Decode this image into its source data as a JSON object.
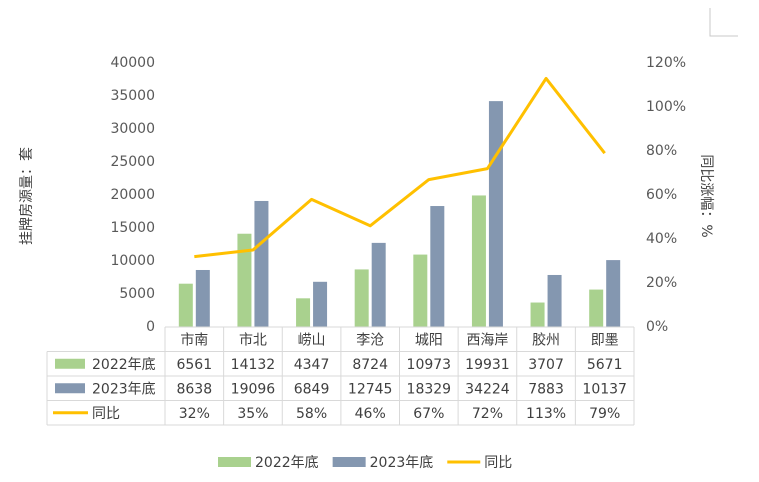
{
  "chart_data": {
    "type": "bar",
    "categories": [
      "市南",
      "市北",
      "崂山",
      "李沧",
      "城阳",
      "西海岸",
      "胶州",
      "即墨"
    ],
    "series": [
      {
        "name": "2022年底",
        "type": "bar",
        "axis": "left",
        "color": "#A9D18E",
        "values": [
          6561,
          14132,
          4347,
          8724,
          10973,
          19931,
          3707,
          5671
        ],
        "labels": [
          "6561",
          "14132",
          "4347",
          "8724",
          "10973",
          "19931",
          "3707",
          "5671"
        ]
      },
      {
        "name": "2023年底",
        "type": "bar",
        "axis": "left",
        "color": "#8497B0",
        "values": [
          8638,
          19096,
          6849,
          12745,
          18329,
          34224,
          7883,
          10137
        ],
        "labels": [
          "8638",
          "19096",
          "6849",
          "12745",
          "18329",
          "34224",
          "7883",
          "10137"
        ]
      },
      {
        "name": "同比",
        "type": "line",
        "axis": "right",
        "color": "#FFC000",
        "values": [
          32,
          35,
          58,
          46,
          67,
          72,
          113,
          79
        ],
        "labels": [
          "32%",
          "35%",
          "58%",
          "46%",
          "67%",
          "72%",
          "113%",
          "79%"
        ]
      }
    ],
    "ylabel": "挂牌房源量：套",
    "y2label": "同比涨幅：%",
    "ylim": [
      0,
      40000
    ],
    "y2lim": [
      0,
      120
    ],
    "yticks": [
      "0",
      "5000",
      "10000",
      "15000",
      "20000",
      "25000",
      "30000",
      "35000",
      "40000"
    ],
    "y2ticks": [
      "0%",
      "20%",
      "40%",
      "60%",
      "80%",
      "100%",
      "120%"
    ],
    "grid": false,
    "data_table": true,
    "legend": "bottom"
  }
}
